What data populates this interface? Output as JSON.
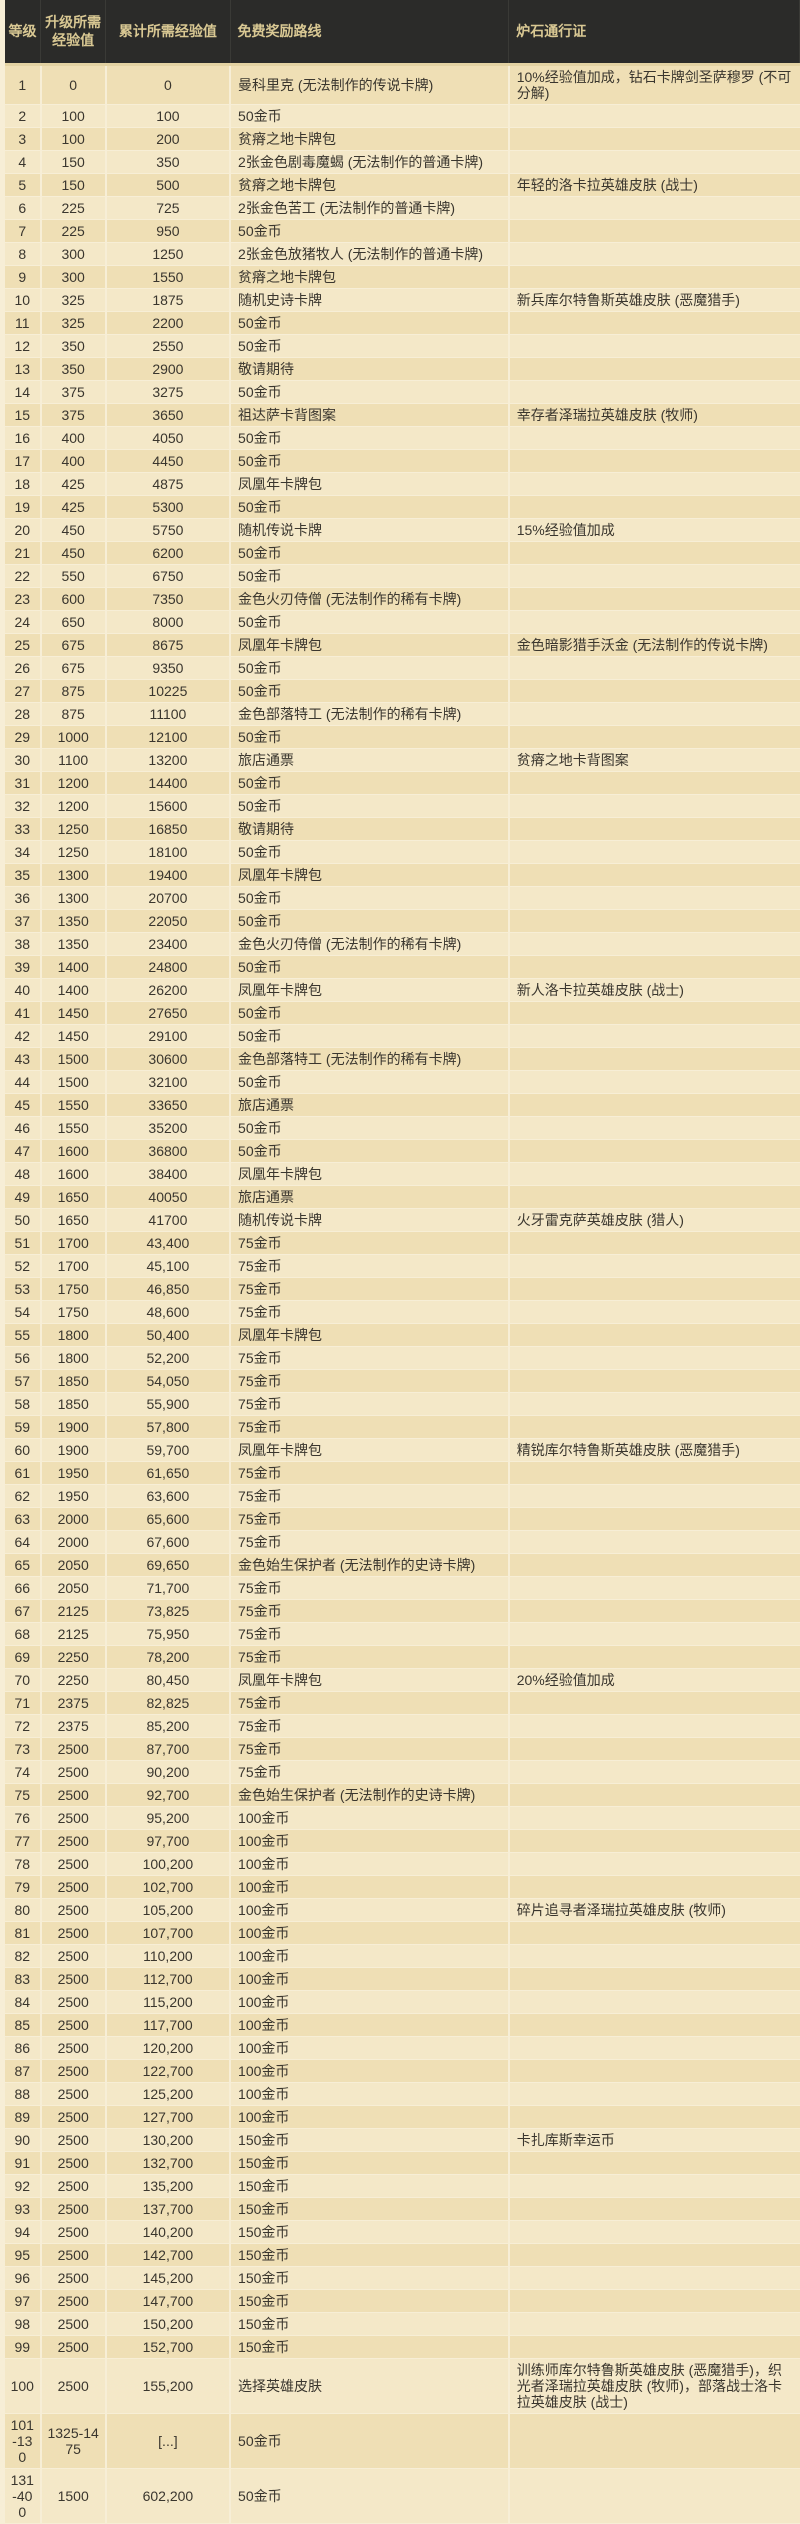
{
  "colors": {
    "header_bg": "#2b2b29",
    "header_text": "#d9c893",
    "row_odd": "#efdfb5",
    "row_even": "#f4e8c8",
    "grid_line": "#f7eed6",
    "body_text": "#3a362e"
  },
  "table": {
    "headers": [
      "等级",
      "升级所需经验值",
      "累计所需经验值",
      "免费奖励路线",
      "炉石通行证"
    ],
    "rows": [
      [
        "1",
        "0",
        "0",
        "曼科里克 (无法制作的传说卡牌)",
        "10%经验值加成，钻石卡牌剑圣萨穆罗 (不可分解)"
      ],
      [
        "2",
        "100",
        "100",
        "50金币",
        ""
      ],
      [
        "3",
        "100",
        "200",
        "贫瘠之地卡牌包",
        ""
      ],
      [
        "4",
        "150",
        "350",
        "2张金色剧毒魔蝎 (无法制作的普通卡牌)",
        ""
      ],
      [
        "5",
        "150",
        "500",
        "贫瘠之地卡牌包",
        "年轻的洛卡拉英雄皮肤 (战士)"
      ],
      [
        "6",
        "225",
        "725",
        "2张金色苦工 (无法制作的普通卡牌)",
        ""
      ],
      [
        "7",
        "225",
        "950",
        "50金币",
        ""
      ],
      [
        "8",
        "300",
        "1250",
        "2张金色放猪牧人 (无法制作的普通卡牌)",
        ""
      ],
      [
        "9",
        "300",
        "1550",
        "贫瘠之地卡牌包",
        ""
      ],
      [
        "10",
        "325",
        "1875",
        "随机史诗卡牌",
        "新兵库尔特鲁斯英雄皮肤 (恶魔猎手)"
      ],
      [
        "11",
        "325",
        "2200",
        "50金币",
        ""
      ],
      [
        "12",
        "350",
        "2550",
        "50金币",
        ""
      ],
      [
        "13",
        "350",
        "2900",
        "敬请期待",
        ""
      ],
      [
        "14",
        "375",
        "3275",
        "50金币",
        ""
      ],
      [
        "15",
        "375",
        "3650",
        "祖达萨卡背图案",
        "幸存者泽瑞拉英雄皮肤 (牧师)"
      ],
      [
        "16",
        "400",
        "4050",
        "50金币",
        ""
      ],
      [
        "17",
        "400",
        "4450",
        "50金币",
        ""
      ],
      [
        "18",
        "425",
        "4875",
        "凤凰年卡牌包",
        ""
      ],
      [
        "19",
        "425",
        "5300",
        "50金币",
        ""
      ],
      [
        "20",
        "450",
        "5750",
        "随机传说卡牌",
        "15%经验值加成"
      ],
      [
        "21",
        "450",
        "6200",
        "50金币",
        ""
      ],
      [
        "22",
        "550",
        "6750",
        "50金币",
        ""
      ],
      [
        "23",
        "600",
        "7350",
        "金色火刃侍僧 (无法制作的稀有卡牌)",
        ""
      ],
      [
        "24",
        "650",
        "8000",
        "50金币",
        ""
      ],
      [
        "25",
        "675",
        "8675",
        "凤凰年卡牌包",
        "金色暗影猎手沃金 (无法制作的传说卡牌)"
      ],
      [
        "26",
        "675",
        "9350",
        "50金币",
        ""
      ],
      [
        "27",
        "875",
        "10225",
        "50金币",
        ""
      ],
      [
        "28",
        "875",
        "11100",
        "金色部落特工 (无法制作的稀有卡牌)",
        ""
      ],
      [
        "29",
        "1000",
        "12100",
        "50金币",
        ""
      ],
      [
        "30",
        "1100",
        "13200",
        "旅店通票",
        "贫瘠之地卡背图案"
      ],
      [
        "31",
        "1200",
        "14400",
        "50金币",
        ""
      ],
      [
        "32",
        "1200",
        "15600",
        "50金币",
        ""
      ],
      [
        "33",
        "1250",
        "16850",
        "敬请期待",
        ""
      ],
      [
        "34",
        "1250",
        "18100",
        "50金币",
        ""
      ],
      [
        "35",
        "1300",
        "19400",
        "凤凰年卡牌包",
        ""
      ],
      [
        "36",
        "1300",
        "20700",
        "50金币",
        ""
      ],
      [
        "37",
        "1350",
        "22050",
        "50金币",
        ""
      ],
      [
        "38",
        "1350",
        "23400",
        "金色火刃侍僧 (无法制作的稀有卡牌)",
        ""
      ],
      [
        "39",
        "1400",
        "24800",
        "50金币",
        ""
      ],
      [
        "40",
        "1400",
        "26200",
        "凤凰年卡牌包",
        "新人洛卡拉英雄皮肤 (战士)"
      ],
      [
        "41",
        "1450",
        "27650",
        "50金币",
        ""
      ],
      [
        "42",
        "1450",
        "29100",
        "50金币",
        ""
      ],
      [
        "43",
        "1500",
        "30600",
        "金色部落特工 (无法制作的稀有卡牌)",
        ""
      ],
      [
        "44",
        "1500",
        "32100",
        "50金币",
        ""
      ],
      [
        "45",
        "1550",
        "33650",
        "旅店通票",
        ""
      ],
      [
        "46",
        "1550",
        "35200",
        "50金币",
        ""
      ],
      [
        "47",
        "1600",
        "36800",
        "50金币",
        ""
      ],
      [
        "48",
        "1600",
        "38400",
        "凤凰年卡牌包",
        ""
      ],
      [
        "49",
        "1650",
        "40050",
        "旅店通票",
        ""
      ],
      [
        "50",
        "1650",
        "41700",
        "随机传说卡牌",
        "火牙雷克萨英雄皮肤 (猎人)"
      ],
      [
        "51",
        "1700",
        "43,400",
        "75金币",
        ""
      ],
      [
        "52",
        "1700",
        "45,100",
        "75金币",
        ""
      ],
      [
        "53",
        "1750",
        "46,850",
        "75金币",
        ""
      ],
      [
        "54",
        "1750",
        "48,600",
        "75金币",
        ""
      ],
      [
        "55",
        "1800",
        "50,400",
        "凤凰年卡牌包",
        ""
      ],
      [
        "56",
        "1800",
        "52,200",
        "75金币",
        ""
      ],
      [
        "57",
        "1850",
        "54,050",
        "75金币",
        ""
      ],
      [
        "58",
        "1850",
        "55,900",
        "75金币",
        ""
      ],
      [
        "59",
        "1900",
        "57,800",
        "75金币",
        ""
      ],
      [
        "60",
        "1900",
        "59,700",
        "凤凰年卡牌包",
        "精锐库尔特鲁斯英雄皮肤 (恶魔猎手)"
      ],
      [
        "61",
        "1950",
        "61,650",
        "75金币",
        ""
      ],
      [
        "62",
        "1950",
        "63,600",
        "75金币",
        ""
      ],
      [
        "63",
        "2000",
        "65,600",
        "75金币",
        ""
      ],
      [
        "64",
        "2000",
        "67,600",
        "75金币",
        ""
      ],
      [
        "65",
        "2050",
        "69,650",
        "金色始生保护者 (无法制作的史诗卡牌)",
        ""
      ],
      [
        "66",
        "2050",
        "71,700",
        "75金币",
        ""
      ],
      [
        "67",
        "2125",
        "73,825",
        "75金币",
        ""
      ],
      [
        "68",
        "2125",
        "75,950",
        "75金币",
        ""
      ],
      [
        "69",
        "2250",
        "78,200",
        "75金币",
        ""
      ],
      [
        "70",
        "2250",
        "80,450",
        "凤凰年卡牌包",
        "20%经验值加成"
      ],
      [
        "71",
        "2375",
        "82,825",
        "75金币",
        ""
      ],
      [
        "72",
        "2375",
        "85,200",
        "75金币",
        ""
      ],
      [
        "73",
        "2500",
        "87,700",
        "75金币",
        ""
      ],
      [
        "74",
        "2500",
        "90,200",
        "75金币",
        ""
      ],
      [
        "75",
        "2500",
        "92,700",
        "金色始生保护者 (无法制作的史诗卡牌)",
        ""
      ],
      [
        "76",
        "2500",
        "95,200",
        "100金币",
        ""
      ],
      [
        "77",
        "2500",
        "97,700",
        "100金币",
        ""
      ],
      [
        "78",
        "2500",
        "100,200",
        "100金币",
        ""
      ],
      [
        "79",
        "2500",
        "102,700",
        "100金币",
        ""
      ],
      [
        "80",
        "2500",
        "105,200",
        "100金币",
        "碎片追寻者泽瑞拉英雄皮肤 (牧师)"
      ],
      [
        "81",
        "2500",
        "107,700",
        "100金币",
        ""
      ],
      [
        "82",
        "2500",
        "110,200",
        "100金币",
        ""
      ],
      [
        "83",
        "2500",
        "112,700",
        "100金币",
        ""
      ],
      [
        "84",
        "2500",
        "115,200",
        "100金币",
        ""
      ],
      [
        "85",
        "2500",
        "117,700",
        "100金币",
        ""
      ],
      [
        "86",
        "2500",
        "120,200",
        "100金币",
        ""
      ],
      [
        "87",
        "2500",
        "122,700",
        "100金币",
        ""
      ],
      [
        "88",
        "2500",
        "125,200",
        "100金币",
        ""
      ],
      [
        "89",
        "2500",
        "127,700",
        "100金币",
        ""
      ],
      [
        "90",
        "2500",
        "130,200",
        "150金币",
        "卡扎库斯幸运币"
      ],
      [
        "91",
        "2500",
        "132,700",
        "150金币",
        ""
      ],
      [
        "92",
        "2500",
        "135,200",
        "150金币",
        ""
      ],
      [
        "93",
        "2500",
        "137,700",
        "150金币",
        ""
      ],
      [
        "94",
        "2500",
        "140,200",
        "150金币",
        ""
      ],
      [
        "95",
        "2500",
        "142,700",
        "150金币",
        ""
      ],
      [
        "96",
        "2500",
        "145,200",
        "150金币",
        ""
      ],
      [
        "97",
        "2500",
        "147,700",
        "150金币",
        ""
      ],
      [
        "98",
        "2500",
        "150,200",
        "150金币",
        ""
      ],
      [
        "99",
        "2500",
        "152,700",
        "150金币",
        ""
      ],
      [
        "100",
        "2500",
        "155,200",
        "选择英雄皮肤",
        "训练师库尔特鲁斯英雄皮肤 (恶魔猎手)，织光者泽瑞拉英雄皮肤 (牧师)，部落战士洛卡拉英雄皮肤 (战士)"
      ],
      [
        "101-130",
        "1325-1475",
        "[...]",
        "50金币",
        ""
      ],
      [
        "131-400",
        "1500",
        "602,200",
        "50金币",
        ""
      ]
    ]
  }
}
